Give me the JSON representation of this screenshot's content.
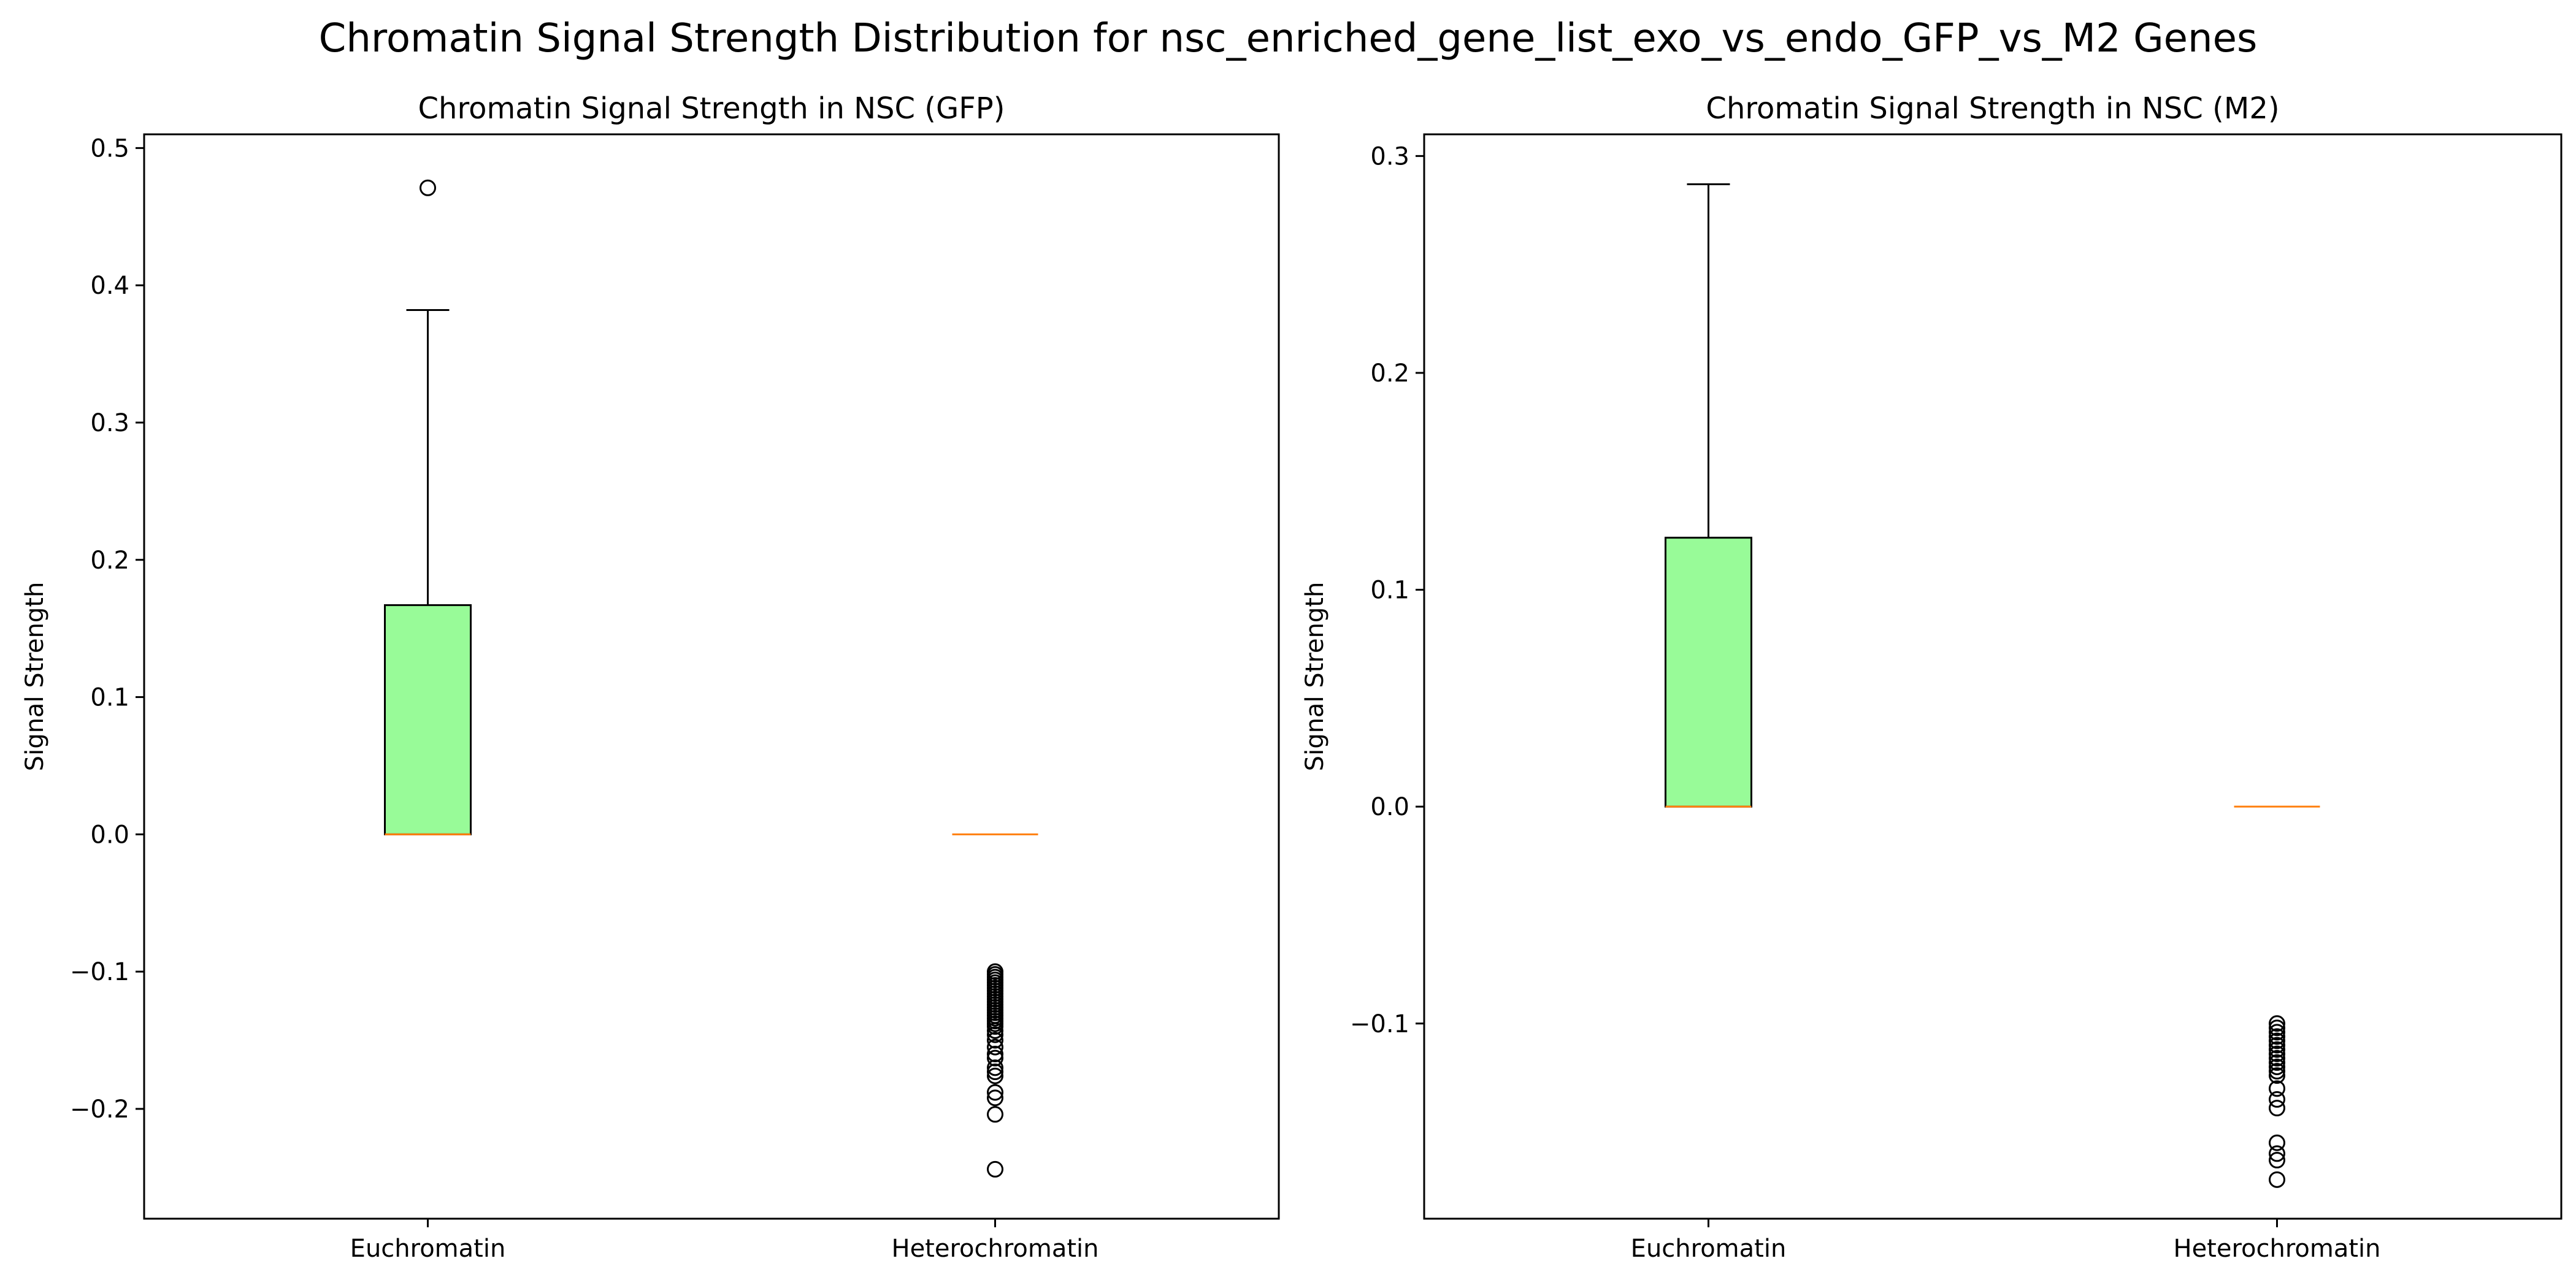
{
  "figure": {
    "suptitle": "Chromatin Signal Strength Distribution for nsc_enriched_gene_list_exo_vs_endo_GFP_vs_M2 Genes"
  },
  "colors": {
    "box_fill": "#98fb98",
    "median": "#ff7f0e",
    "stroke": "#000000"
  },
  "chart_data": [
    {
      "type": "box",
      "title": "Chromatin Signal Strength in NSC (GFP)",
      "xlabel": "",
      "ylabel": "Signal Strength",
      "ylim": [
        -0.28,
        0.51
      ],
      "yticks": [
        -0.2,
        -0.1,
        0.0,
        0.1,
        0.2,
        0.3,
        0.4,
        0.5
      ],
      "ytick_labels": [
        "−0.2",
        "−0.1",
        "0.0",
        "0.1",
        "0.2",
        "0.3",
        "0.4",
        "0.5"
      ],
      "categories": [
        "Euchromatin",
        "Heterochromatin"
      ],
      "boxes": [
        {
          "category": "Euchromatin",
          "whisker_low": 0.0,
          "q1": 0.0,
          "median": 0.0,
          "q3": 0.167,
          "whisker_high": 0.382,
          "outliers": [
            0.471
          ]
        },
        {
          "category": "Heterochromatin",
          "whisker_low": 0.0,
          "q1": 0.0,
          "median": 0.0,
          "q3": 0.0,
          "whisker_high": 0.0,
          "outliers": [
            -0.1,
            -0.102,
            -0.104,
            -0.106,
            -0.108,
            -0.11,
            -0.112,
            -0.114,
            -0.116,
            -0.118,
            -0.12,
            -0.122,
            -0.124,
            -0.126,
            -0.128,
            -0.13,
            -0.132,
            -0.134,
            -0.136,
            -0.138,
            -0.14,
            -0.143,
            -0.146,
            -0.15,
            -0.155,
            -0.16,
            -0.163,
            -0.17,
            -0.173,
            -0.176,
            -0.188,
            -0.192,
            -0.204,
            -0.244
          ]
        }
      ]
    },
    {
      "type": "box",
      "title": "Chromatin Signal Strength in NSC (M2)",
      "xlabel": "",
      "ylabel": "Signal Strength",
      "ylim": [
        -0.19,
        0.31
      ],
      "yticks": [
        -0.1,
        0.0,
        0.1,
        0.2,
        0.3
      ],
      "ytick_labels": [
        "−0.1",
        "0.0",
        "0.1",
        "0.2",
        "0.3"
      ],
      "categories": [
        "Euchromatin",
        "Heterochromatin"
      ],
      "boxes": [
        {
          "category": "Euchromatin",
          "whisker_low": 0.0,
          "q1": 0.0,
          "median": 0.0,
          "q3": 0.124,
          "whisker_high": 0.287,
          "outliers": []
        },
        {
          "category": "Heterochromatin",
          "whisker_low": 0.0,
          "q1": 0.0,
          "median": 0.0,
          "q3": 0.0,
          "whisker_high": 0.0,
          "outliers": [
            -0.1,
            -0.102,
            -0.104,
            -0.106,
            -0.108,
            -0.11,
            -0.112,
            -0.114,
            -0.116,
            -0.118,
            -0.12,
            -0.122,
            -0.124,
            -0.13,
            -0.135,
            -0.139,
            -0.155,
            -0.16,
            -0.163,
            -0.172
          ]
        }
      ]
    }
  ]
}
